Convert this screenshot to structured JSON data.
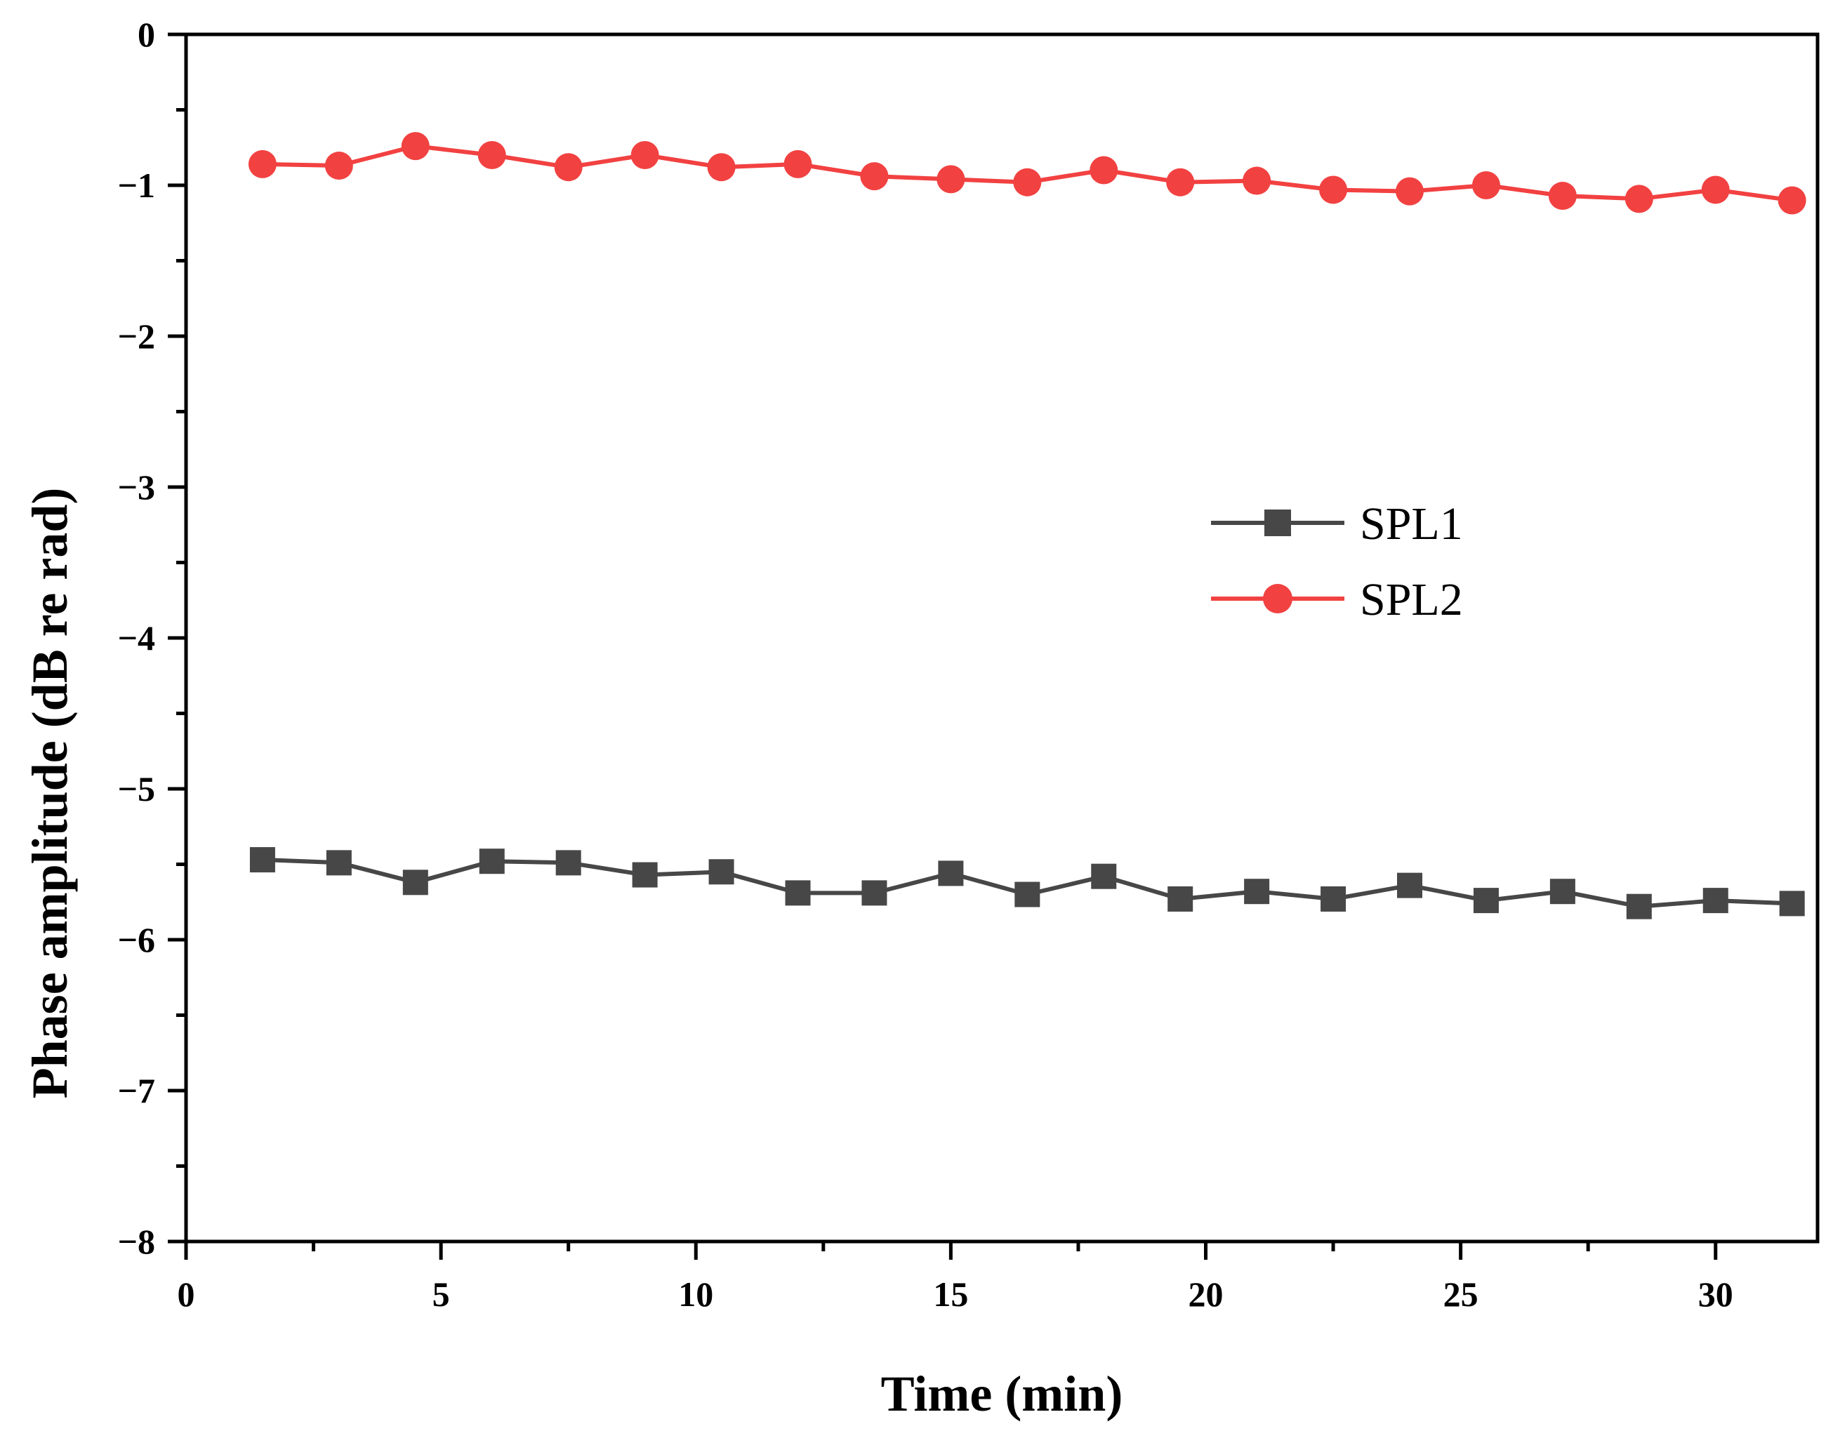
{
  "chart_data": {
    "type": "line",
    "title": "",
    "xlabel": "Time (min)",
    "ylabel": "Phase amplitude (dB re rad)",
    "xlim": [
      0,
      32
    ],
    "ylim": [
      -8,
      0
    ],
    "xticks": [
      0,
      5,
      10,
      15,
      20,
      25,
      30
    ],
    "yticks": [
      0,
      -1,
      -2,
      -3,
      -4,
      -5,
      -6,
      -7,
      -8
    ],
    "ytick_labels": [
      "0",
      "−1",
      "−2",
      "−3",
      "−4",
      "−5",
      "−6",
      "−7",
      "−8"
    ],
    "grid": false,
    "legend_position": "center-right",
    "x": [
      1.5,
      3,
      4.5,
      6,
      7.5,
      9,
      10.5,
      12,
      13.5,
      15,
      16.5,
      18,
      19.5,
      21,
      22.5,
      24,
      25.5,
      27,
      28.5,
      30,
      31.5
    ],
    "series": [
      {
        "name": "SPL1",
        "marker": "square",
        "color": "#474747",
        "values": [
          -5.47,
          -5.49,
          -5.62,
          -5.48,
          -5.49,
          -5.57,
          -5.55,
          -5.69,
          -5.69,
          -5.56,
          -5.7,
          -5.58,
          -5.73,
          -5.68,
          -5.73,
          -5.64,
          -5.74,
          -5.68,
          -5.78,
          -5.74,
          -5.76
        ]
      },
      {
        "name": "SPL2",
        "marker": "circle",
        "color": "#f24141",
        "values": [
          -0.86,
          -0.87,
          -0.74,
          -0.8,
          -0.88,
          -0.8,
          -0.88,
          -0.86,
          -0.94,
          -0.96,
          -0.98,
          -0.9,
          -0.98,
          -0.97,
          -1.03,
          -1.04,
          -1.0,
          -1.07,
          -1.09,
          -1.03,
          -1.1
        ]
      }
    ]
  }
}
